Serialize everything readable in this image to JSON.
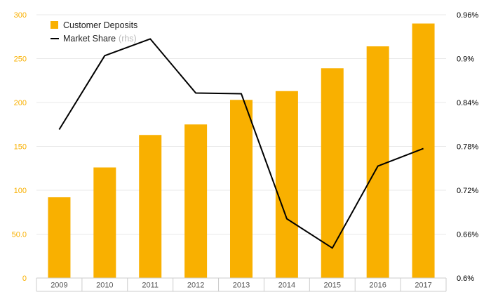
{
  "chart_data": {
    "type": "bar",
    "categories": [
      "2009",
      "2010",
      "2011",
      "2012",
      "2013",
      "2014",
      "2015",
      "2016",
      "2017"
    ],
    "series": [
      {
        "name": "Customer Deposits",
        "type": "bar",
        "axis": "left",
        "color": "#f9b000",
        "values": [
          92,
          126,
          163,
          175,
          203,
          213,
          239,
          264,
          290
        ]
      },
      {
        "name": "Market Share",
        "name_note": "(rhs)",
        "type": "line",
        "axis": "right",
        "color": "#000000",
        "values": [
          0.803,
          0.904,
          0.927,
          0.853,
          0.852,
          0.681,
          0.641,
          0.753,
          0.777
        ]
      }
    ],
    "y_left": {
      "ylim": [
        0,
        300
      ],
      "ticks": [
        0,
        50,
        100,
        150,
        200,
        250,
        300
      ],
      "tick_labels": [
        "0",
        "50.0",
        "100",
        "150",
        "200",
        "250",
        "300"
      ],
      "tick_color": "#f9b000"
    },
    "y_right": {
      "ylim": [
        0.6,
        0.96
      ],
      "ticks": [
        0.6,
        0.66,
        0.72,
        0.78,
        0.84,
        0.9,
        0.96
      ],
      "tick_labels": [
        "0.6%",
        "0.66%",
        "0.72%",
        "0.78%",
        "0.84%",
        "0.9%",
        "0.96%"
      ],
      "tick_color": "#000000"
    },
    "grid": true,
    "legend_position": "top-left",
    "title": "",
    "xlabel": "",
    "ylabel": ""
  },
  "colors": {
    "bar": "#f9b000",
    "line": "#000000",
    "grid": "#e8e8e8",
    "axis": "#cccccc",
    "background": "#ffffff"
  }
}
